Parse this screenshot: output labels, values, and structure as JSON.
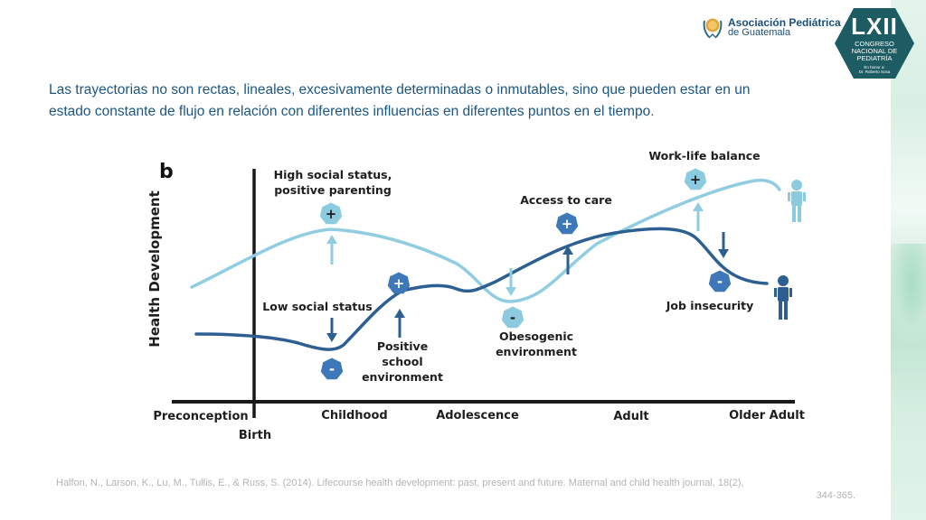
{
  "header": {
    "org_logo": {
      "icon": "pediatric-association-emblem-icon",
      "name": "Asociación Pediátrica",
      "subtitle": "de Guatemala"
    },
    "congress_badge": {
      "numeral": "LXII",
      "lines": [
        "CONGRESO",
        "NACIONAL DE",
        "PEDIATRÍA"
      ],
      "honor_line_1": "En honor a:",
      "honor_line_2": "Dr. Roberto Sosa",
      "color": "#1d5c63"
    }
  },
  "intro_text": "Las trayectorias no son rectas, lineales, excesivamente determinadas o inmutables, sino que pueden estar en un estado constante de flujo en relación con diferentes influencias en diferentes puntos en el tiempo.",
  "diagram": {
    "panel_label": "b",
    "y_axis_label": "Health Development",
    "x_axis_stages": [
      "Preconception",
      "Childhood",
      "Adolescence",
      "Adult",
      "Older Adult"
    ],
    "birth_label": "Birth",
    "colors": {
      "light_trajectory": "#91cde0",
      "dark_trajectory": "#2e5f92",
      "light_marker": "#8ccbdf",
      "dark_marker": "#3f78b8",
      "axis": "#1a1a1a"
    },
    "influences": [
      {
        "label_lines": [
          "High social status,",
          "positive parenting"
        ],
        "sign": "+",
        "trajectory": "light",
        "direction": "up",
        "stage": "Childhood"
      },
      {
        "label_lines": [
          "Low social status"
        ],
        "sign": "-",
        "trajectory": "dark",
        "direction": "down",
        "stage": "Childhood"
      },
      {
        "label_lines": [
          "Positive",
          "school",
          "environment"
        ],
        "sign": "+",
        "trajectory": "dark",
        "direction": "up",
        "stage": "Childhood"
      },
      {
        "label_lines": [
          "Access to care"
        ],
        "sign": "+",
        "trajectory": "dark",
        "direction": "up",
        "stage": "Adolescence"
      },
      {
        "label_lines": [
          "Obesogenic",
          "environment"
        ],
        "sign": "-",
        "trajectory": "light",
        "direction": "down",
        "stage": "Adolescence"
      },
      {
        "label_lines": [
          "Work-life balance"
        ],
        "sign": "+",
        "trajectory": "light",
        "direction": "up",
        "stage": "Adult"
      },
      {
        "label_lines": [
          "Job insecurity"
        ],
        "sign": "-",
        "trajectory": "dark",
        "direction": "down",
        "stage": "Adult"
      }
    ],
    "figures": [
      {
        "icon": "person-icon",
        "trajectory": "light"
      },
      {
        "icon": "person-icon",
        "trajectory": "dark"
      }
    ]
  },
  "citation": {
    "line1": "Halfon, N., Larson, K., Lu, M., Tullis, E., & Russ, S. (2014). Lifecourse health development: past, present and future. Maternal and child health journal, 18(2),",
    "line2": "344-365."
  }
}
